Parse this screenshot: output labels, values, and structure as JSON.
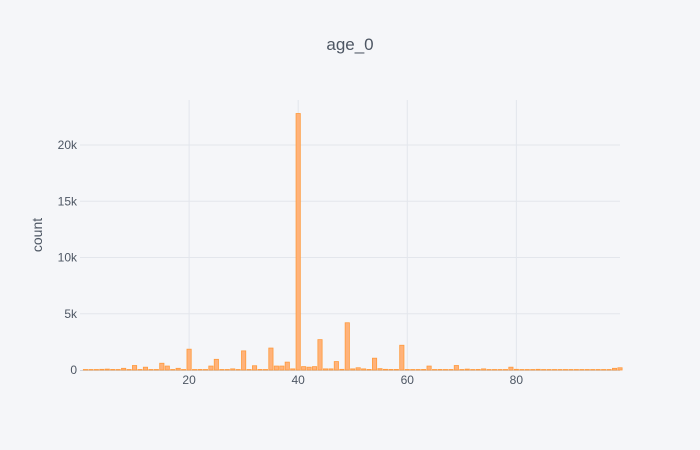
{
  "chart_data": {
    "type": "bar",
    "title": "age_0",
    "xlabel": "",
    "ylabel": "count",
    "xlim": [
      0,
      99
    ],
    "ylim": [
      0,
      24000
    ],
    "grid": true,
    "x_ticks": [
      20,
      40,
      60,
      80
    ],
    "x_tick_labels": [
      "20",
      "40",
      "60",
      "80"
    ],
    "y_ticks": [
      0,
      5000,
      10000,
      15000,
      20000
    ],
    "y_tick_labels": [
      "0",
      "5k",
      "10k",
      "15k",
      "20k"
    ],
    "bin_width": 1,
    "bar_color": "#ffb27a",
    "bar_edge_color": "#ff9a3c",
    "background": "#f5f6f9",
    "grid_color": "#e3e6ec",
    "series": [
      {
        "x": [
          1,
          2,
          3,
          4,
          5,
          6,
          7,
          8,
          9,
          10,
          11,
          12,
          13,
          14,
          15,
          16,
          17,
          18,
          19,
          20,
          21,
          22,
          23,
          24,
          25,
          26,
          27,
          28,
          29,
          30,
          31,
          32,
          33,
          34,
          35,
          36,
          37,
          38,
          39,
          40,
          41,
          42,
          43,
          44,
          45,
          46,
          47,
          48,
          49,
          50,
          51,
          52,
          53,
          54,
          55,
          56,
          57,
          58,
          59,
          60,
          61,
          62,
          63,
          64,
          65,
          66,
          67,
          68,
          69,
          70,
          71,
          72,
          73,
          74,
          75,
          76,
          77,
          78,
          79,
          80,
          81,
          82,
          83,
          84,
          85,
          86,
          87,
          88,
          89,
          90,
          91,
          92,
          93,
          94,
          95,
          96,
          97,
          98,
          99
        ],
        "values": [
          20,
          10,
          30,
          60,
          80,
          50,
          40,
          150,
          30,
          400,
          20,
          250,
          10,
          20,
          600,
          350,
          20,
          150,
          20,
          1850,
          20,
          50,
          20,
          350,
          950,
          20,
          40,
          100,
          20,
          1700,
          40,
          380,
          50,
          20,
          1950,
          350,
          350,
          700,
          100,
          22800,
          300,
          250,
          300,
          2700,
          100,
          100,
          750,
          60,
          4200,
          100,
          200,
          100,
          50,
          1050,
          120,
          60,
          50,
          50,
          2200,
          30,
          40,
          40,
          50,
          350,
          30,
          50,
          20,
          40,
          400,
          30,
          80,
          20,
          50,
          100,
          20,
          30,
          20,
          30,
          250,
          60,
          20,
          10,
          20,
          60,
          30,
          20,
          10,
          40,
          30,
          40,
          30,
          20,
          10,
          20,
          30,
          20,
          40,
          150,
          200
        ]
      }
    ]
  }
}
